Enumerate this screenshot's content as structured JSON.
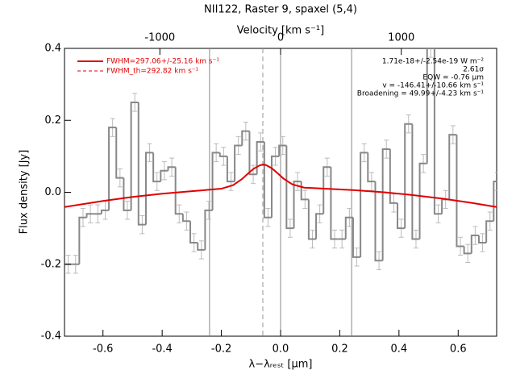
{
  "chart_data": {
    "type": "histogram",
    "title": "NII122, Raster 9, spaxel (5,4)",
    "x_label": "λ−λᵣₑₛₜ [μm]",
    "y_label": "Flux density [Jy]",
    "x2_label": "Velocity [km s⁻¹]",
    "xlim": [
      -0.73,
      0.73
    ],
    "xticks": [
      -0.6,
      -0.4,
      -0.2,
      {
        "value": 0,
        "label": "0.0"
      },
      0.2,
      0.4,
      0.6
    ],
    "x2lim": [
      -1790,
      1790
    ],
    "x2ticks": [
      -1000,
      0,
      1000
    ],
    "ylim": [
      -0.4,
      0.4
    ],
    "yticks": [
      -0.4,
      -0.2,
      {
        "value": 0,
        "label": "0.0"
      },
      0.2,
      0.4
    ],
    "color": "#888888",
    "error_color": "#bbbbbb",
    "error": 0.025,
    "bins": [
      -0.73,
      -0.705,
      -0.68,
      -0.655,
      -0.63,
      -0.605,
      -0.58,
      -0.555,
      -0.53,
      -0.505,
      -0.48,
      -0.455,
      -0.43,
      -0.405,
      -0.38,
      -0.355,
      -0.33,
      -0.305,
      -0.28,
      -0.255,
      -0.23,
      -0.205,
      -0.18,
      -0.155,
      -0.13,
      -0.105,
      -0.08,
      -0.055,
      -0.03,
      -0.005,
      0.02,
      0.045,
      0.07,
      0.095,
      0.12,
      0.145,
      0.17,
      0.195,
      0.22,
      0.245,
      0.27,
      0.295,
      0.32,
      0.345,
      0.37,
      0.395,
      0.42,
      0.445,
      0.47,
      0.495,
      0.52,
      0.545,
      0.57,
      0.595,
      0.62,
      0.645,
      0.67,
      0.695,
      0.72,
      0.745
    ],
    "values": [
      -0.2,
      -0.2,
      -0.07,
      -0.06,
      -0.06,
      -0.05,
      0.18,
      0.04,
      -0.05,
      0.25,
      -0.09,
      0.11,
      0.03,
      0.06,
      0.07,
      -0.06,
      -0.08,
      -0.14,
      -0.16,
      -0.05,
      0.11,
      0.1,
      0.03,
      0.13,
      0.17,
      0.05,
      0.14,
      -0.07,
      0.1,
      0.13,
      -0.1,
      0.03,
      -0.02,
      -0.13,
      -0.06,
      0.07,
      -0.13,
      -0.13,
      -0.07,
      -0.18,
      0.11,
      0.03,
      -0.19,
      0.12,
      -0.03,
      -0.1,
      0.19,
      -0.13,
      0.08,
      0.4,
      -0.06,
      -0.02,
      0.16,
      -0.15,
      -0.17,
      -0.12,
      -0.14,
      -0.08,
      0.03
    ],
    "fit": {
      "name": "FWHM=297.06+/-25.16 km s⁻¹",
      "color": "#e00000",
      "x": [
        -0.73,
        -0.6,
        -0.5,
        -0.4,
        -0.3,
        -0.2,
        -0.16,
        -0.13,
        -0.11,
        -0.09,
        -0.07,
        -0.06,
        -0.05,
        -0.03,
        -0.01,
        0.01,
        0.04,
        0.08,
        0.15,
        0.25,
        0.35,
        0.45,
        0.55,
        0.65,
        0.73
      ],
      "values": [
        -0.041,
        -0.024,
        -0.013,
        -0.004,
        0.003,
        0.01,
        0.02,
        0.037,
        0.052,
        0.066,
        0.075,
        0.077,
        0.076,
        0.067,
        0.053,
        0.038,
        0.022,
        0.013,
        0.01,
        0.006,
        0,
        -0.008,
        -0.018,
        -0.03,
        -0.041
      ]
    },
    "fit_th_name": "FWHM_th=292.82 km s⁻¹",
    "vlines": [
      -0.24,
      0,
      0.24
    ],
    "vline_dashed": -0.06,
    "annotations": [
      "1.71e-18+/-2.54e-19 W m⁻²",
      "2.61σ",
      "EQW = -0.76 μm",
      "v = -146.41+/-10.66 km s⁻¹",
      "Broadening = 49.99+/-4.23 km s⁻¹"
    ]
  }
}
